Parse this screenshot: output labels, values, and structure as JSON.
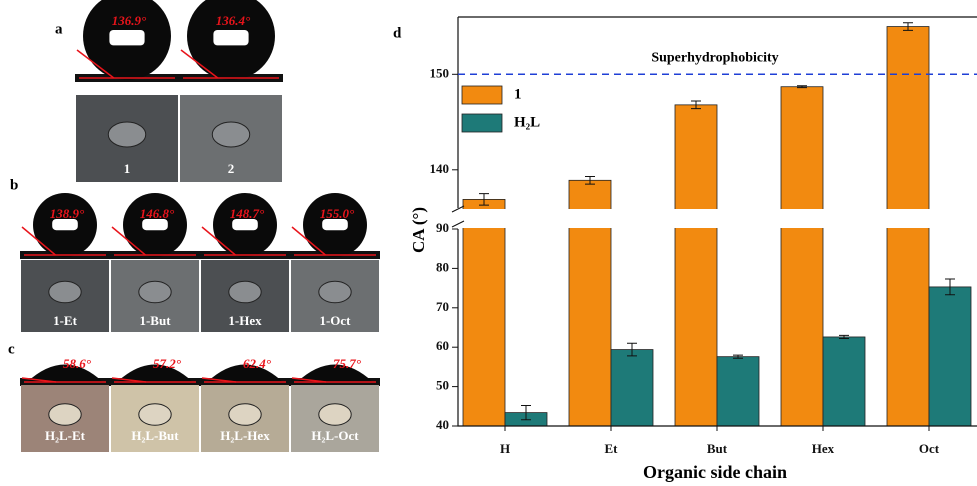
{
  "panels": [
    {
      "letter": "a",
      "angles": [
        "136.9°",
        "136.4°"
      ],
      "labels": [
        "1",
        "2"
      ]
    },
    {
      "letter": "b",
      "angles": [
        "138.9°",
        "146.8°",
        "148.7°",
        "155.0°"
      ],
      "labels": [
        "1-Et",
        "1-But",
        "1-Hex",
        "1-Oct"
      ]
    },
    {
      "letter": "c",
      "angles": [
        "58.6°",
        "57.2°",
        "62.4°",
        "75.7°"
      ],
      "labels": [
        "H₂L-Et",
        "H₂L-But",
        "H₂L-Hex",
        "H₂L-Oct"
      ]
    }
  ],
  "chart_data": {
    "type": "bar",
    "panel_letter": "d",
    "xlabel": "Organic side chain",
    "ylabel": "CA (°)",
    "categories": [
      "H",
      "Et",
      "But",
      "Hex",
      "Oct"
    ],
    "series": [
      {
        "name": "1",
        "color": "#f28a10",
        "values": [
          136.9,
          138.9,
          146.8,
          148.7,
          155.0
        ],
        "errors": [
          0.6,
          0.4,
          0.4,
          0.1,
          0.4
        ]
      },
      {
        "name": "H₂L",
        "color": "#1e7a78",
        "values": [
          43.4,
          59.4,
          57.6,
          62.6,
          75.3
        ],
        "errors": [
          1.8,
          1.6,
          0.4,
          0.4,
          2.0
        ]
      }
    ],
    "ylim": [
      40,
      156
    ],
    "y_break": [
      90,
      136
    ],
    "yticks": [
      40,
      50,
      60,
      70,
      80,
      90,
      140,
      150
    ],
    "reference_line": {
      "value": 150,
      "label": "Superhydrophobicity",
      "color": "#1f3fd6"
    },
    "legend": "upper left"
  }
}
